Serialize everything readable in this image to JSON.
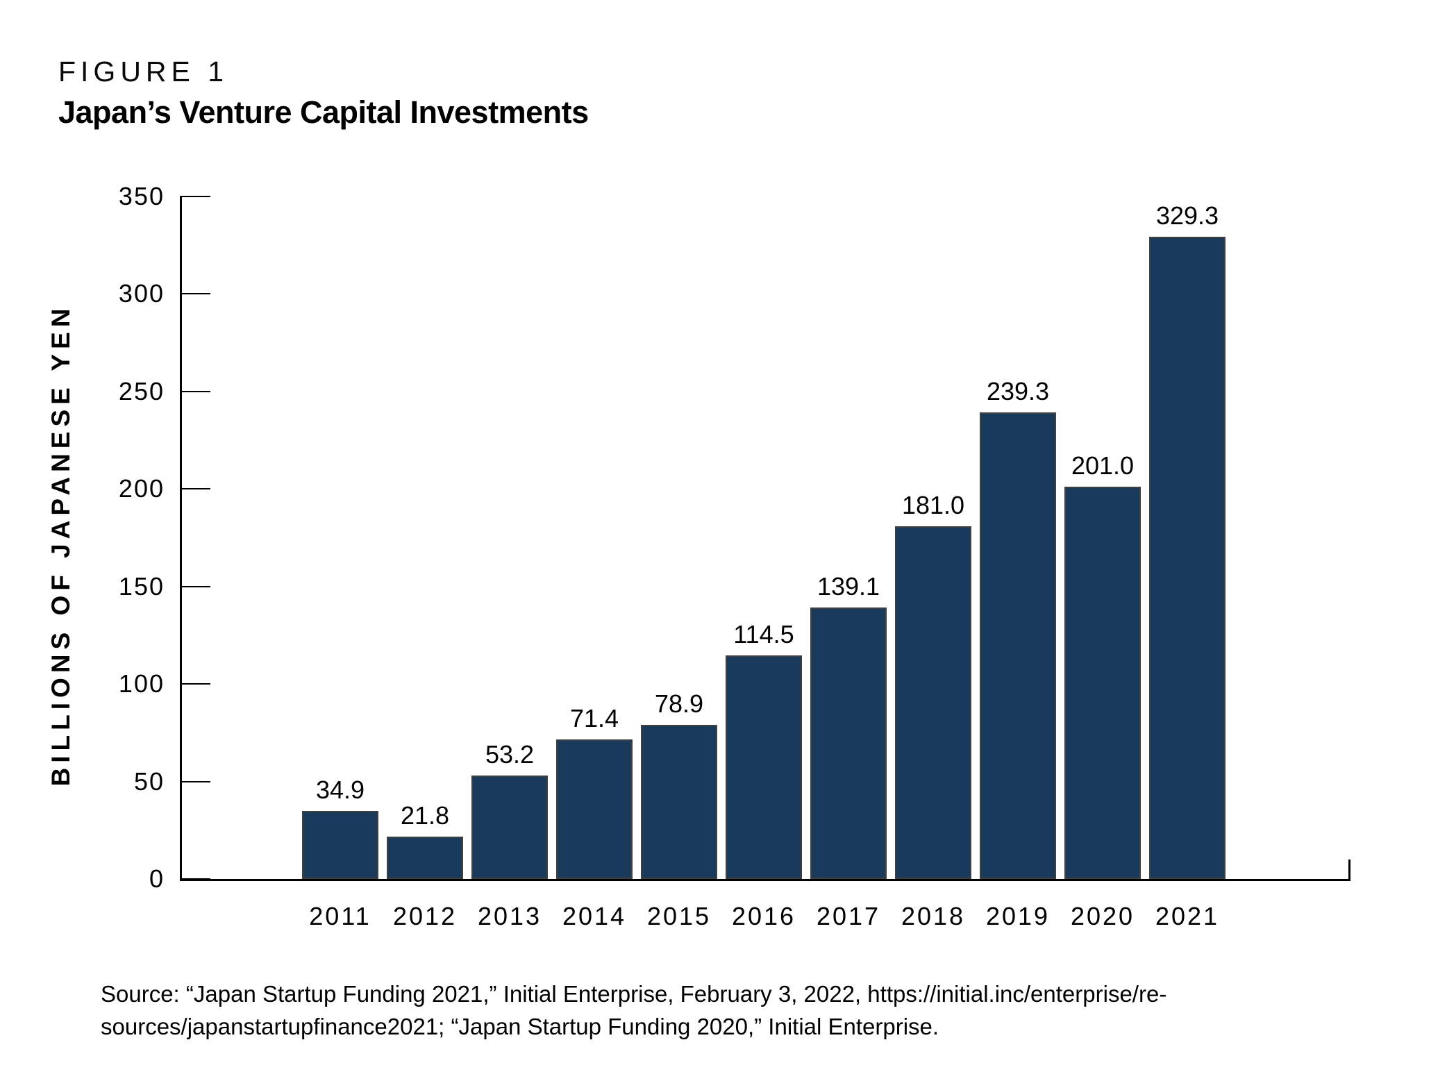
{
  "figure": {
    "label": "FIGURE 1"
  },
  "chart_data": {
    "type": "bar",
    "title": "Japan’s Venture Capital Investments",
    "categories": [
      "2011",
      "2012",
      "2013",
      "2014",
      "2015",
      "2016",
      "2017",
      "2018",
      "2019",
      "2020",
      "2021"
    ],
    "values": [
      34.9,
      21.8,
      53.2,
      71.4,
      78.9,
      114.5,
      139.1,
      181.0,
      239.3,
      201.0,
      329.3
    ],
    "value_labels": [
      "34.9",
      "21.8",
      "53.2",
      "71.4",
      "78.9",
      "114.5",
      "139.1",
      "181.0",
      "239.3",
      "201.0",
      "329.3"
    ],
    "xlabel": "",
    "ylabel": "BILLIONS OF JAPANESE YEN",
    "ylim": [
      0,
      350
    ],
    "yticks": [
      0,
      50,
      100,
      150,
      200,
      250,
      300,
      350
    ],
    "grid": false,
    "legend": null,
    "bar_color": "#1A3A5C",
    "bar_border_color": "#404040",
    "axis_color": "#000000",
    "text_color": "#000000"
  },
  "source": {
    "line1": "Source: “Japan Startup Funding 2021,” Initial Enterprise, February 3, 2022, https://initial.inc/enterprise/re-",
    "line2": "sources/japanstartupfinance2021; “Japan Startup Funding 2020,” Initial Enterprise."
  }
}
